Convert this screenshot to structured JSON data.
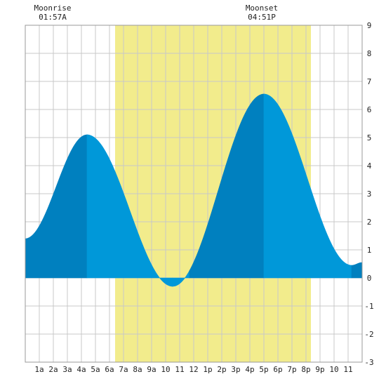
{
  "chart_data": {
    "type": "area",
    "title": "",
    "xlabel": "",
    "ylabel": "",
    "xlim": [
      0,
      24
    ],
    "ylim": [
      -3,
      9
    ],
    "grid": true,
    "x_tick_labels": [
      "1a",
      "2a",
      "3a",
      "4a",
      "5a",
      "6a",
      "7a",
      "8a",
      "9a",
      "10",
      "11",
      "12",
      "1p",
      "2p",
      "3p",
      "4p",
      "5p",
      "6p",
      "7p",
      "8p",
      "9p",
      "10",
      "11"
    ],
    "y_tick_labels": [
      "-3",
      "-2",
      "-1",
      "0",
      "1",
      "2",
      "3",
      "4",
      "5",
      "6",
      "7",
      "8",
      "9"
    ],
    "daylight": {
      "start": 6.4,
      "end": 20.35,
      "color": "#f2ec8c"
    },
    "colors": {
      "dark_fill": "#0080bf",
      "light_fill": "#0098d9",
      "grid": "#c8c8c8",
      "plot_bg": "#ffffff"
    },
    "extremes": [
      {
        "x": 0.0,
        "y": 1.4
      },
      {
        "x": 4.4,
        "y": 5.1
      },
      {
        "x": 10.5,
        "y": -0.3
      },
      {
        "x": 17.0,
        "y": 6.55
      },
      {
        "x": 23.25,
        "y": 0.45
      },
      {
        "x": 24.0,
        "y": 0.55
      }
    ],
    "shading_segments": [
      {
        "from": 0.0,
        "to": 4.4,
        "shade": "dark"
      },
      {
        "from": 4.4,
        "to": 10.5,
        "shade": "light"
      },
      {
        "from": 10.5,
        "to": 11.7,
        "shade": "light"
      },
      {
        "from": 11.7,
        "to": 17.0,
        "shade": "dark"
      },
      {
        "from": 17.0,
        "to": 23.25,
        "shade": "light"
      },
      {
        "from": 23.25,
        "to": 24.0,
        "shade": "dark"
      }
    ]
  },
  "annotations": {
    "moonrise": {
      "label": "Moonrise",
      "time": "01:57A",
      "x": 1.95
    },
    "moonset": {
      "label": "Moonset",
      "time": "04:51P",
      "x": 16.85
    }
  }
}
